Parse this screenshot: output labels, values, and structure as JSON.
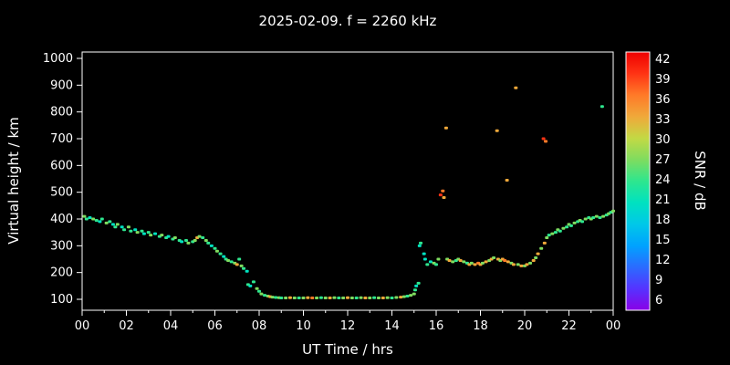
{
  "chart_data": {
    "type": "scatter",
    "title": "2025-02-09. f = 2260 kHz",
    "xlabel": "UT Time / hrs",
    "ylabel": "Virtual height / km",
    "xlim": [
      0,
      24
    ],
    "ylim": [
      100,
      1000
    ],
    "grid": false,
    "x_tick_values": [
      0,
      2,
      4,
      6,
      8,
      10,
      12,
      14,
      16,
      18,
      20,
      22,
      24
    ],
    "x_tick_labels": [
      "00",
      "02",
      "04",
      "06",
      "08",
      "10",
      "12",
      "14",
      "16",
      "18",
      "20",
      "22",
      "00"
    ],
    "y_tick_values": [
      100,
      200,
      300,
      400,
      500,
      600,
      700,
      800,
      900,
      1000
    ],
    "y_tick_labels": [
      "100",
      "200",
      "300",
      "400",
      "500",
      "600",
      "700",
      "800",
      "900",
      "1000"
    ],
    "colorbar": {
      "label": "SNR / dB",
      "min": 6,
      "max": 42,
      "tick_values": [
        6,
        9,
        12,
        15,
        18,
        21,
        24,
        27,
        30,
        33,
        36,
        39,
        42
      ],
      "tick_labels": [
        "6",
        "9",
        "12",
        "15",
        "18",
        "21",
        "24",
        "27",
        "30",
        "33",
        "36",
        "39",
        "42"
      ],
      "stops": [
        {
          "v": 6,
          "c": "#8a00e6"
        },
        {
          "v": 9,
          "c": "#5533ff"
        },
        {
          "v": 12,
          "c": "#2b6bff"
        },
        {
          "v": 15,
          "c": "#00a2ff"
        },
        {
          "v": 18,
          "c": "#00c8e8"
        },
        {
          "v": 21,
          "c": "#00e2c0"
        },
        {
          "v": 24,
          "c": "#2ee68e"
        },
        {
          "v": 27,
          "c": "#7fdc5f"
        },
        {
          "v": 30,
          "c": "#c3d944"
        },
        {
          "v": 33,
          "c": "#f0a83a"
        },
        {
          "v": 36,
          "c": "#ff7a28"
        },
        {
          "v": 39,
          "c": "#ff3314"
        },
        {
          "v": 42,
          "c": "#ee0000"
        }
      ]
    },
    "points": [
      [
        0.1,
        410,
        27
      ],
      [
        0.2,
        400,
        24
      ],
      [
        0.35,
        405,
        21
      ],
      [
        0.5,
        400,
        27
      ],
      [
        0.65,
        395,
        24
      ],
      [
        0.8,
        390,
        21
      ],
      [
        0.9,
        400,
        24
      ],
      [
        1.1,
        385,
        27
      ],
      [
        1.25,
        390,
        24
      ],
      [
        1.4,
        380,
        21
      ],
      [
        1.5,
        370,
        24
      ],
      [
        1.6,
        380,
        27
      ],
      [
        1.8,
        370,
        21
      ],
      [
        1.9,
        360,
        24
      ],
      [
        2.1,
        370,
        27
      ],
      [
        2.2,
        355,
        24
      ],
      [
        2.4,
        360,
        21
      ],
      [
        2.5,
        350,
        27
      ],
      [
        2.7,
        355,
        24
      ],
      [
        2.8,
        345,
        21
      ],
      [
        3.0,
        350,
        24
      ],
      [
        3.1,
        340,
        27
      ],
      [
        3.3,
        345,
        21
      ],
      [
        3.5,
        335,
        24
      ],
      [
        3.6,
        340,
        27
      ],
      [
        3.8,
        330,
        24
      ],
      [
        3.9,
        335,
        21
      ],
      [
        4.1,
        325,
        24
      ],
      [
        4.2,
        330,
        27
      ],
      [
        4.4,
        320,
        24
      ],
      [
        4.5,
        315,
        21
      ],
      [
        4.7,
        320,
        24
      ],
      [
        4.8,
        310,
        27
      ],
      [
        5.0,
        315,
        24
      ],
      [
        5.1,
        320,
        27
      ],
      [
        5.2,
        330,
        33
      ],
      [
        5.3,
        335,
        27
      ],
      [
        5.45,
        330,
        24
      ],
      [
        5.6,
        320,
        27
      ],
      [
        5.7,
        310,
        24
      ],
      [
        5.85,
        300,
        21
      ],
      [
        6.0,
        290,
        24
      ],
      [
        6.1,
        280,
        27
      ],
      [
        6.25,
        270,
        24
      ],
      [
        6.4,
        260,
        21
      ],
      [
        6.5,
        250,
        24
      ],
      [
        6.6,
        245,
        27
      ],
      [
        6.75,
        240,
        24
      ],
      [
        6.9,
        235,
        27
      ],
      [
        7.0,
        230,
        33
      ],
      [
        7.1,
        250,
        24
      ],
      [
        7.2,
        225,
        27
      ],
      [
        7.3,
        215,
        24
      ],
      [
        7.45,
        205,
        21
      ],
      [
        7.5,
        155,
        24
      ],
      [
        7.6,
        150,
        21
      ],
      [
        7.75,
        165,
        24
      ],
      [
        7.9,
        140,
        27
      ],
      [
        8.0,
        130,
        24
      ],
      [
        8.1,
        120,
        27
      ],
      [
        8.25,
        115,
        24
      ],
      [
        8.4,
        112,
        27
      ],
      [
        8.5,
        110,
        33
      ],
      [
        8.6,
        108,
        27
      ],
      [
        8.75,
        107,
        24
      ],
      [
        8.9,
        106,
        27
      ],
      [
        9.0,
        105,
        24
      ],
      [
        9.2,
        105,
        27
      ],
      [
        9.4,
        106,
        33
      ],
      [
        9.6,
        105,
        27
      ],
      [
        9.8,
        105,
        24
      ],
      [
        10.0,
        105,
        27
      ],
      [
        10.2,
        106,
        33
      ],
      [
        10.4,
        105,
        36
      ],
      [
        10.6,
        105,
        27
      ],
      [
        10.8,
        106,
        24
      ],
      [
        11.0,
        105,
        27
      ],
      [
        11.2,
        105,
        33
      ],
      [
        11.4,
        106,
        27
      ],
      [
        11.6,
        105,
        24
      ],
      [
        11.8,
        105,
        27
      ],
      [
        12.0,
        106,
        33
      ],
      [
        12.2,
        105,
        27
      ],
      [
        12.4,
        105,
        24
      ],
      [
        12.6,
        106,
        27
      ],
      [
        12.8,
        105,
        33
      ],
      [
        13.0,
        105,
        27
      ],
      [
        13.2,
        106,
        24
      ],
      [
        13.4,
        105,
        27
      ],
      [
        13.6,
        105,
        33
      ],
      [
        13.8,
        106,
        27
      ],
      [
        14.0,
        105,
        24
      ],
      [
        14.2,
        107,
        27
      ],
      [
        14.4,
        108,
        33
      ],
      [
        14.55,
        110,
        27
      ],
      [
        14.7,
        112,
        24
      ],
      [
        14.85,
        115,
        27
      ],
      [
        15.0,
        120,
        27
      ],
      [
        15.05,
        135,
        24
      ],
      [
        15.1,
        150,
        21
      ],
      [
        15.2,
        160,
        24
      ],
      [
        15.25,
        300,
        21
      ],
      [
        15.3,
        310,
        24
      ],
      [
        15.45,
        270,
        21
      ],
      [
        15.5,
        250,
        21
      ],
      [
        15.6,
        230,
        24
      ],
      [
        15.75,
        240,
        21
      ],
      [
        15.9,
        235,
        27
      ],
      [
        16.0,
        230,
        24
      ],
      [
        16.1,
        250,
        27
      ],
      [
        16.2,
        490,
        39
      ],
      [
        16.3,
        505,
        36
      ],
      [
        16.35,
        480,
        33
      ],
      [
        16.45,
        740,
        33
      ],
      [
        16.5,
        250,
        27
      ],
      [
        16.6,
        245,
        33
      ],
      [
        16.75,
        240,
        27
      ],
      [
        16.9,
        245,
        24
      ],
      [
        17.0,
        250,
        27
      ],
      [
        17.1,
        245,
        33
      ],
      [
        17.25,
        240,
        27
      ],
      [
        17.4,
        235,
        24
      ],
      [
        17.5,
        230,
        33
      ],
      [
        17.6,
        235,
        27
      ],
      [
        17.75,
        230,
        33
      ],
      [
        17.9,
        235,
        36
      ],
      [
        18.0,
        230,
        33
      ],
      [
        18.1,
        235,
        27
      ],
      [
        18.25,
        240,
        33
      ],
      [
        18.4,
        245,
        27
      ],
      [
        18.5,
        250,
        33
      ],
      [
        18.6,
        255,
        27
      ],
      [
        18.75,
        730,
        33
      ],
      [
        18.8,
        250,
        33
      ],
      [
        18.9,
        245,
        27
      ],
      [
        19.0,
        250,
        33
      ],
      [
        19.1,
        245,
        36
      ],
      [
        19.2,
        545,
        33
      ],
      [
        19.25,
        240,
        33
      ],
      [
        19.4,
        235,
        27
      ],
      [
        19.5,
        230,
        33
      ],
      [
        19.6,
        890,
        33
      ],
      [
        19.7,
        230,
        27
      ],
      [
        19.85,
        225,
        33
      ],
      [
        20.0,
        225,
        27
      ],
      [
        20.1,
        230,
        33
      ],
      [
        20.25,
        235,
        27
      ],
      [
        20.4,
        245,
        33
      ],
      [
        20.5,
        255,
        27
      ],
      [
        20.6,
        270,
        33
      ],
      [
        20.75,
        290,
        27
      ],
      [
        20.85,
        700,
        39
      ],
      [
        20.95,
        690,
        36
      ],
      [
        20.9,
        310,
        33
      ],
      [
        21.0,
        330,
        27
      ],
      [
        21.1,
        340,
        24
      ],
      [
        21.25,
        345,
        27
      ],
      [
        21.4,
        350,
        24
      ],
      [
        21.5,
        360,
        27
      ],
      [
        21.6,
        355,
        24
      ],
      [
        21.75,
        365,
        27
      ],
      [
        21.9,
        370,
        24
      ],
      [
        22.0,
        380,
        27
      ],
      [
        22.1,
        375,
        24
      ],
      [
        22.25,
        385,
        27
      ],
      [
        22.4,
        390,
        24
      ],
      [
        22.5,
        395,
        27
      ],
      [
        22.6,
        390,
        24
      ],
      [
        22.75,
        400,
        27
      ],
      [
        22.9,
        405,
        24
      ],
      [
        23.0,
        400,
        27
      ],
      [
        23.1,
        405,
        24
      ],
      [
        23.25,
        410,
        27
      ],
      [
        23.4,
        405,
        24
      ],
      [
        23.5,
        820,
        24
      ],
      [
        23.55,
        410,
        27
      ],
      [
        23.7,
        415,
        24
      ],
      [
        23.8,
        420,
        27
      ],
      [
        23.9,
        425,
        24
      ],
      [
        24.0,
        430,
        27
      ]
    ]
  }
}
